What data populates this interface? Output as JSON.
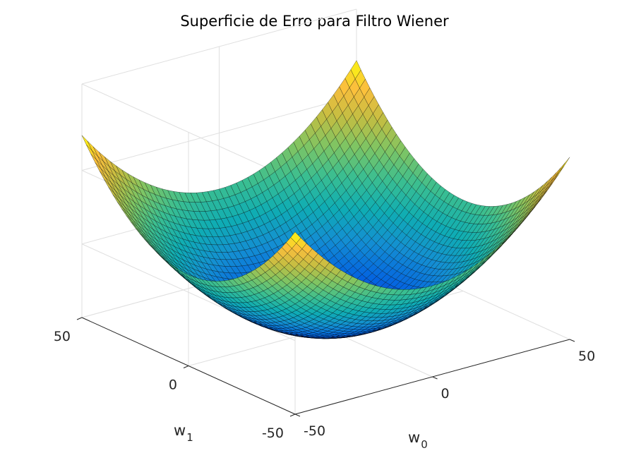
{
  "chart_data": {
    "type": "surface",
    "title": "Superficie de Erro para Filtro Wiener",
    "xlabel": "w",
    "xlabel_sub": "0",
    "ylabel": "w",
    "ylabel_sub": "1",
    "zlabel": "",
    "x_range": [
      -50,
      50
    ],
    "y_range": [
      -50,
      50
    ],
    "x_ticks": [
      -50,
      0,
      50
    ],
    "y_ticks": [
      -50,
      0,
      50
    ],
    "grid": true,
    "colormap": "parula",
    "function": "paraboloid, minimum at w0=0, w1=0",
    "colors": {
      "edge": "#000000",
      "axis": "#262626",
      "grid": "#dfdfdf"
    }
  }
}
